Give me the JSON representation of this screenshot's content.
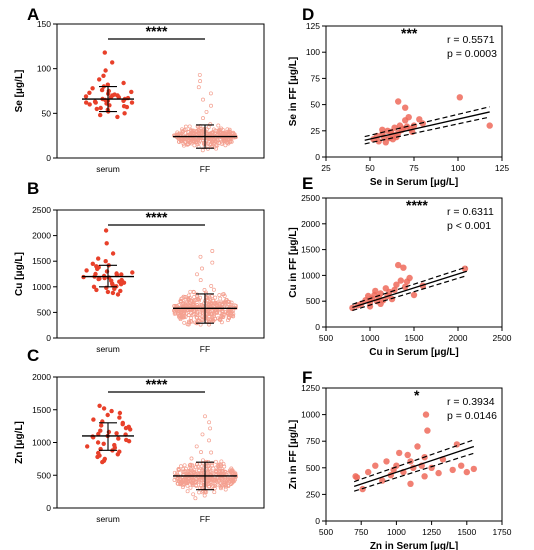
{
  "colors": {
    "serum": "#e8402a",
    "ff": "#f4a090",
    "scatter": "#ee6a5a",
    "axis": "#000000"
  },
  "chart_data": [
    {
      "panel": "A",
      "type": "scatter",
      "categories": [
        "serum",
        "FF"
      ],
      "ylabel": "Se [μg/L]",
      "ylim": [
        0,
        150
      ],
      "yticks": [
        0,
        50,
        100,
        150
      ],
      "significance": "****",
      "summary": [
        {
          "mean": 66,
          "sd_low": 52,
          "sd_high": 80
        },
        {
          "mean": 24,
          "sd_low": 11,
          "sd_high": 37
        }
      ],
      "series": [
        {
          "values": [
            118,
            107,
            98,
            92,
            88,
            84,
            82,
            80,
            78,
            76,
            75,
            74,
            73,
            72,
            71,
            70,
            69,
            68,
            68,
            67,
            66,
            65,
            64,
            63,
            62,
            62,
            61,
            60,
            59,
            58,
            57,
            56,
            55,
            54,
            52,
            50,
            48,
            46,
            62,
            66,
            70,
            64
          ]
        },
        {
          "center": 24,
          "spread": 10,
          "count": 340,
          "min": 2,
          "max": 93
        }
      ]
    },
    {
      "panel": "B",
      "type": "scatter",
      "categories": [
        "serum",
        "FF"
      ],
      "ylabel": "Cu [μg/L]",
      "ylim": [
        0,
        2500
      ],
      "yticks": [
        0,
        500,
        1000,
        1500,
        2000,
        2500
      ],
      "significance": "****",
      "summary": [
        {
          "mean": 1200,
          "sd_low": 1000,
          "sd_high": 1420
        },
        {
          "mean": 580,
          "sd_low": 290,
          "sd_high": 860
        }
      ],
      "series": [
        {
          "values": [
            2100,
            1850,
            1650,
            1550,
            1500,
            1450,
            1420,
            1400,
            1380,
            1350,
            1320,
            1300,
            1280,
            1260,
            1250,
            1230,
            1210,
            1200,
            1190,
            1180,
            1160,
            1150,
            1130,
            1120,
            1100,
            1080,
            1060,
            1050,
            1030,
            1010,
            1000,
            980,
            960,
            940,
            920,
            900,
            880,
            850,
            1240,
            1170
          ]
        },
        {
          "center": 560,
          "spread": 260,
          "count": 380,
          "min": 80,
          "max": 1700
        }
      ]
    },
    {
      "panel": "C",
      "type": "scatter",
      "categories": [
        "serum",
        "FF"
      ],
      "ylabel": "Zn [μg/L]",
      "ylim": [
        0,
        2000
      ],
      "yticks": [
        0,
        500,
        1000,
        1500,
        2000
      ],
      "significance": "****",
      "summary": [
        {
          "mean": 1100,
          "sd_low": 880,
          "sd_high": 1300
        },
        {
          "mean": 490,
          "sd_low": 280,
          "sd_high": 700
        }
      ],
      "series": [
        {
          "values": [
            1560,
            1520,
            1480,
            1450,
            1420,
            1380,
            1350,
            1320,
            1300,
            1280,
            1260,
            1240,
            1220,
            1200,
            1180,
            1160,
            1140,
            1120,
            1100,
            1090,
            1080,
            1060,
            1040,
            1020,
            1000,
            980,
            960,
            940,
            920,
            900,
            880,
            860,
            840,
            820,
            800,
            780,
            750,
            720,
            700,
            1130
          ]
        },
        {
          "center": 480,
          "spread": 200,
          "count": 360,
          "min": 60,
          "max": 1400
        }
      ]
    },
    {
      "panel": "D",
      "type": "scatter",
      "xlabel": "Se in Serum [μg/L]",
      "ylabel": "Se in FF [μg/L]",
      "xlim": [
        25,
        125
      ],
      "ylim": [
        0,
        125
      ],
      "xticks": [
        25,
        50,
        75,
        100,
        125
      ],
      "yticks": [
        0,
        25,
        50,
        75,
        100,
        125
      ],
      "significance": "***",
      "r_text": "r = 0.5571",
      "p_text": "p = 0.0003",
      "fit": {
        "x": [
          47,
          118
        ],
        "y": [
          16,
          43
        ],
        "band": 3.5
      },
      "points": [
        [
          118,
          30
        ],
        [
          101,
          57
        ],
        [
          66,
          53
        ],
        [
          70,
          47
        ],
        [
          52,
          17
        ],
        [
          54,
          20
        ],
        [
          55,
          15
        ],
        [
          57,
          22
        ],
        [
          58,
          19
        ],
        [
          60,
          25
        ],
        [
          61,
          18
        ],
        [
          62,
          24
        ],
        [
          63,
          21
        ],
        [
          64,
          28
        ],
        [
          65,
          19
        ],
        [
          66,
          23
        ],
        [
          67,
          30
        ],
        [
          68,
          26
        ],
        [
          69,
          27
        ],
        [
          70,
          35
        ],
        [
          71,
          29
        ],
        [
          72,
          38
        ],
        [
          73,
          27
        ],
        [
          74,
          24
        ],
        [
          75,
          30
        ],
        [
          78,
          36
        ],
        [
          80,
          32
        ],
        [
          59,
          14
        ],
        [
          63,
          17
        ],
        [
          57,
          26
        ]
      ]
    },
    {
      "panel": "E",
      "type": "scatter",
      "xlabel": "Cu in Serum [μg/L]",
      "ylabel": "Cu in FF [μg/L]",
      "xlim": [
        500,
        2500
      ],
      "ylim": [
        0,
        2500
      ],
      "xticks": [
        500,
        1000,
        1500,
        2000,
        2500
      ],
      "yticks": [
        0,
        500,
        1000,
        1500,
        2000,
        2500
      ],
      "significance": "****",
      "r_text": "r = 0.6311",
      "p_text": "p < 0.001",
      "fit": {
        "x": [
          800,
          2100
        ],
        "y": [
          380,
          1080
        ],
        "band": 60
      },
      "points": [
        [
          800,
          370
        ],
        [
          860,
          420
        ],
        [
          900,
          450
        ],
        [
          950,
          520
        ],
        [
          980,
          600
        ],
        [
          1000,
          480
        ],
        [
          1020,
          550
        ],
        [
          1050,
          620
        ],
        [
          1060,
          700
        ],
        [
          1080,
          500
        ],
        [
          1100,
          580
        ],
        [
          1120,
          650
        ],
        [
          1150,
          520
        ],
        [
          1180,
          750
        ],
        [
          1200,
          600
        ],
        [
          1220,
          680
        ],
        [
          1250,
          540
        ],
        [
          1280,
          720
        ],
        [
          1300,
          820
        ],
        [
          1320,
          1200
        ],
        [
          1350,
          900
        ],
        [
          1380,
          1150
        ],
        [
          1400,
          780
        ],
        [
          1420,
          880
        ],
        [
          1450,
          950
        ],
        [
          1500,
          620
        ],
        [
          1600,
          800
        ],
        [
          1000,
          400
        ],
        [
          1120,
          450
        ],
        [
          2080,
          1130
        ]
      ]
    },
    {
      "panel": "F",
      "type": "scatter",
      "xlabel": "Zn in Serum [μg/L]",
      "ylabel": "Zn in FF [μg/L]",
      "xlim": [
        500,
        1750
      ],
      "ylim": [
        0,
        1250
      ],
      "xticks": [
        500,
        750,
        1000,
        1250,
        1500,
        1750
      ],
      "yticks": [
        0,
        250,
        500,
        750,
        1000,
        1250
      ],
      "significance": "*",
      "r_text": "r = 0.3934",
      "p_text": "p = 0.0146",
      "fit": {
        "x": [
          700,
          1550
        ],
        "y": [
          325,
          700
        ],
        "band": 45
      },
      "points": [
        [
          710,
          420
        ],
        [
          720,
          410
        ],
        [
          760,
          300
        ],
        [
          800,
          460
        ],
        [
          850,
          520
        ],
        [
          900,
          380
        ],
        [
          930,
          560
        ],
        [
          960,
          430
        ],
        [
          980,
          480
        ],
        [
          1000,
          520
        ],
        [
          1020,
          640
        ],
        [
          1050,
          460
        ],
        [
          1080,
          620
        ],
        [
          1100,
          560
        ],
        [
          1120,
          500
        ],
        [
          1150,
          700
        ],
        [
          1180,
          520
        ],
        [
          1200,
          600
        ],
        [
          1210,
          1000
        ],
        [
          1220,
          850
        ],
        [
          1250,
          500
        ],
        [
          1300,
          450
        ],
        [
          1330,
          580
        ],
        [
          1400,
          480
        ],
        [
          1430,
          720
        ],
        [
          1460,
          520
        ],
        [
          1500,
          460
        ],
        [
          1550,
          490
        ],
        [
          1100,
          350
        ],
        [
          1200,
          420
        ]
      ]
    }
  ]
}
